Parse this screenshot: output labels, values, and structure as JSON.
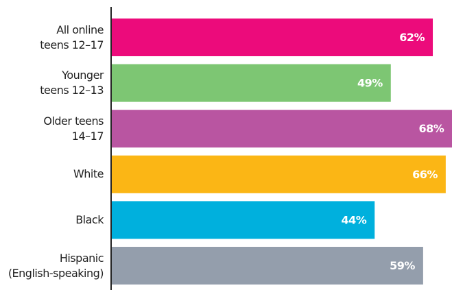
{
  "chart_data": {
    "type": "bar",
    "orientation": "horizontal",
    "categories": [
      "All online\nteens 12–17",
      "Younger\nteens 12–13",
      "Older teens\n14–17",
      "White",
      "Black",
      "Hispanic\n(English-speaking)"
    ],
    "values": [
      62,
      49,
      68,
      66,
      44,
      59
    ],
    "value_labels": [
      "62%",
      "49%",
      "68%",
      "66%",
      "44%",
      "59%"
    ],
    "colors": [
      "#ec0b7b",
      "#7dc673",
      "#b955a1",
      "#fbb615",
      "#00b0dd",
      "#949eac"
    ]
  }
}
